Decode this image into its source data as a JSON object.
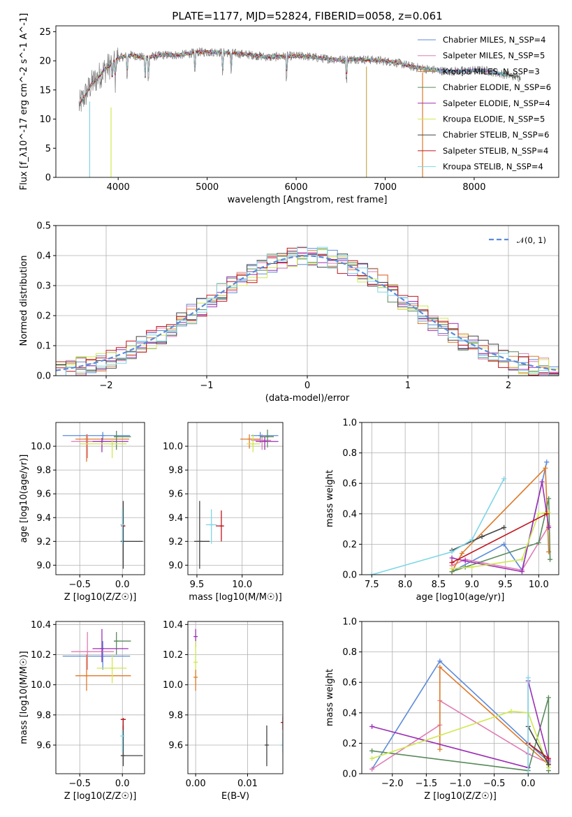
{
  "chart_data": [
    {
      "type": "line",
      "title": "PLATE=1177, MJD=52824, FIBERID=0058, z=0.061",
      "xlabel": "wavelength [Angstrom, rest frame]",
      "ylabel": "Flux [f_λ10^-17 erg cm^-2 s^-1 A^-1]",
      "xlim": [
        3300,
        8950
      ],
      "ylim": [
        0,
        26
      ],
      "xticks": [
        "4000",
        "5000",
        "6000",
        "7000",
        "8000"
      ],
      "yticks": [
        "0",
        "5",
        "10",
        "15",
        "20",
        "25"
      ],
      "legend_position": "upper right",
      "series": [
        {
          "name": "Chabrier MILES, N_SSP=4",
          "color": "#5b8bd9"
        },
        {
          "name": "Salpeter MILES, N_SSP=5",
          "color": "#e07cb4"
        },
        {
          "name": "Kroupa MILES, N_SSP=3",
          "color": "#dd7a2a"
        },
        {
          "name": "Chabrier ELODIE, N_SSP=6",
          "color": "#5a8a5c"
        },
        {
          "name": "Salpeter ELODIE, N_SSP=4",
          "color": "#9b2fb5"
        },
        {
          "name": "Kroupa ELODIE, N_SSP=5",
          "color": "#cfe84e"
        },
        {
          "name": "Chabrier STELIB, N_SSP=6",
          "color": "#444444"
        },
        {
          "name": "Salpeter STELIB, N_SSP=4",
          "color": "#c0141c"
        },
        {
          "name": "Kroupa STELIB, N_SSP=4",
          "color": "#7fd6e6"
        }
      ],
      "continuum": {
        "x": [
          3550,
          3700,
          3850,
          4000,
          4150,
          4300,
          4500,
          4700,
          4900,
          5100,
          5300,
          5500,
          5700,
          5900,
          6100,
          6300,
          6500,
          6700,
          6900,
          7100,
          7300,
          7500,
          7700,
          7900,
          8100,
          8300,
          8500
        ],
        "y": [
          12,
          16,
          18.5,
          20.5,
          21,
          20.5,
          21,
          21,
          21.5,
          21.5,
          21.3,
          21,
          20.6,
          20.8,
          20.8,
          20.4,
          20.2,
          20.3,
          20.1,
          19.8,
          19,
          18.5,
          18.2,
          18.3,
          18.4,
          17.8,
          17.2
        ]
      }
    },
    {
      "type": "bar",
      "subtype": "step-histogram",
      "xlabel": "(data-model)/error",
      "ylabel": "Normed distribution",
      "xlim": [
        -2.5,
        2.5
      ],
      "ylim": [
        0,
        0.5
      ],
      "xticks": [
        "−2",
        "−1",
        "0",
        "1",
        "2"
      ],
      "yticks": [
        "0.0",
        "0.1",
        "0.2",
        "0.3",
        "0.4",
        "0.5"
      ],
      "reference_curve": {
        "name": "𝒩(0, 1)",
        "mean": 0,
        "sigma": 1,
        "color": "#5b8bd9"
      },
      "legend_position": "upper right"
    },
    {
      "type": "scatter",
      "subtype": "errorbars",
      "xlabel": "Z [log10(Z/Z☉)]",
      "ylabel": "age  [log10(age/yr)]",
      "xlim": [
        -0.78,
        0.26
      ],
      "ylim": [
        8.92,
        10.2
      ],
      "xticks": [
        "−0.5",
        "0.0"
      ],
      "yticks": [
        "9.0",
        "9.2",
        "9.4",
        "9.6",
        "9.8",
        "10.0"
      ],
      "points": [
        {
          "color": "#5b8bd9",
          "x": -0.23,
          "xlo": -0.7,
          "xhi": 0.09,
          "y": 10.09,
          "ylo": 10.05,
          "yhi": 10.12
        },
        {
          "color": "#e07cb4",
          "x": -0.41,
          "xlo": -0.6,
          "xhi": -0.1,
          "y": 10.04,
          "ylo": 9.9,
          "yhi": 10.1
        },
        {
          "color": "#dd7a2a",
          "x": -0.42,
          "xlo": -0.55,
          "xhi": 0.08,
          "y": 10.06,
          "ylo": 9.87,
          "yhi": 10.1
        },
        {
          "color": "#5a8a5c",
          "x": -0.07,
          "xlo": -0.1,
          "xhi": 0.1,
          "y": 10.08,
          "ylo": 9.97,
          "yhi": 10.13
        },
        {
          "color": "#9b2fb5",
          "x": -0.24,
          "xlo": -0.35,
          "xhi": 0.07,
          "y": 10.04,
          "ylo": 9.95,
          "yhi": 10.07
        },
        {
          "color": "#cfe84e",
          "x": -0.12,
          "xlo": -0.5,
          "xhi": 0.05,
          "y": 10.02,
          "ylo": 9.9,
          "yhi": 10.06
        },
        {
          "color": "#444444",
          "x": 0.01,
          "xlo": -0.02,
          "xhi": 0.24,
          "y": 9.2,
          "ylo": 8.97,
          "yhi": 9.54
        },
        {
          "color": "#c0141c",
          "x": 0.01,
          "xlo": 0.0,
          "xhi": 0.03,
          "y": 9.33,
          "ylo": 9.32,
          "yhi": 9.34
        },
        {
          "color": "#7fd6e6",
          "x": 0.0,
          "xlo": -0.01,
          "xhi": 0.02,
          "y": 9.34,
          "ylo": 9.18,
          "yhi": 9.47
        }
      ]
    },
    {
      "type": "scatter",
      "subtype": "errorbars",
      "xlabel": "mass [log10(M/M☉)]",
      "xlim": [
        9.4,
        10.45
      ],
      "ylim": [
        8.92,
        10.2
      ],
      "xticks": [
        "9.5",
        "10.0"
      ],
      "yticks": [
        "9.0",
        "9.2",
        "9.4",
        "9.6",
        "9.8",
        "10.0"
      ],
      "points": [
        {
          "color": "#5b8bd9",
          "x": 10.2,
          "xlo": 10.1,
          "xhi": 10.4,
          "y": 10.09,
          "ylo": 10.03,
          "yhi": 10.12
        },
        {
          "color": "#e07cb4",
          "x": 10.22,
          "xlo": 10.1,
          "xhi": 10.32,
          "y": 10.05,
          "ylo": 9.97,
          "yhi": 10.1
        },
        {
          "color": "#dd7a2a",
          "x": 10.08,
          "xlo": 9.98,
          "xhi": 10.2,
          "y": 10.06,
          "ylo": 9.98,
          "yhi": 10.1
        },
        {
          "color": "#5a8a5c",
          "x": 10.28,
          "xlo": 10.2,
          "xhi": 10.35,
          "y": 10.08,
          "ylo": 9.99,
          "yhi": 10.14
        },
        {
          "color": "#9b2fb5",
          "x": 10.25,
          "xlo": 10.15,
          "xhi": 10.4,
          "y": 10.04,
          "ylo": 9.97,
          "yhi": 10.08
        },
        {
          "color": "#cfe84e",
          "x": 10.12,
          "xlo": 10.05,
          "xhi": 10.2,
          "y": 10.02,
          "ylo": 9.95,
          "yhi": 10.1
        },
        {
          "color": "#444444",
          "x": 9.53,
          "xlo": 9.47,
          "xhi": 9.64,
          "y": 9.2,
          "ylo": 8.97,
          "yhi": 9.54
        },
        {
          "color": "#c0141c",
          "x": 9.77,
          "xlo": 9.71,
          "xhi": 9.8,
          "y": 9.33,
          "ylo": 9.2,
          "yhi": 9.46
        },
        {
          "color": "#7fd6e6",
          "x": 9.66,
          "xlo": 9.6,
          "xhi": 9.72,
          "y": 9.34,
          "ylo": 9.18,
          "yhi": 9.47
        }
      ]
    },
    {
      "type": "line",
      "xlabel": "age  [log10(age/yr)]",
      "ylabel": "mass weight",
      "xlim": [
        7.35,
        10.3
      ],
      "ylim": [
        0,
        1.0
      ],
      "xticks": [
        "7.5",
        "8.0",
        "8.5",
        "9.0",
        "9.5",
        "10.0"
      ],
      "yticks": [
        "0.0",
        "0.2",
        "0.4",
        "0.6",
        "0.8",
        "1.0"
      ],
      "series": [
        {
          "color": "#5b8bd9",
          "x": [
            8.7,
            9.48,
            9.75,
            10.12
          ],
          "y": [
            0.02,
            0.2,
            0.03,
            0.74
          ]
        },
        {
          "color": "#e07cb4",
          "x": [
            8.7,
            8.9,
            9.75,
            10.15
          ],
          "y": [
            0.06,
            0.1,
            0.03,
            0.32
          ]
        },
        {
          "color": "#dd7a2a",
          "x": [
            8.7,
            8.85,
            10.1,
            10.15
          ],
          "y": [
            0.02,
            0.14,
            0.7,
            0.15
          ]
        },
        {
          "color": "#5a8a5c",
          "x": [
            8.7,
            8.9,
            10.0,
            10.15,
            10.17
          ],
          "y": [
            0.02,
            0.05,
            0.21,
            0.5,
            0.1
          ]
        },
        {
          "color": "#9b2fb5",
          "x": [
            8.7,
            8.9,
            9.75,
            10.05,
            10.15
          ],
          "y": [
            0.11,
            0.09,
            0.02,
            0.61,
            0.31
          ]
        },
        {
          "color": "#cfe84e",
          "x": [
            8.7,
            9.0,
            9.75,
            10.0,
            10.15
          ],
          "y": [
            0.04,
            0.05,
            0.1,
            0.4,
            0.41
          ]
        },
        {
          "color": "#444444",
          "x": [
            8.7,
            9.15,
            9.48
          ],
          "y": [
            0.16,
            0.25,
            0.31
          ]
        },
        {
          "color": "#c0141c",
          "x": [
            8.7,
            10.12
          ],
          "y": [
            0.08,
            0.4
          ]
        },
        {
          "color": "#7fd6e6",
          "x": [
            7.5,
            8.7,
            9.0,
            9.48
          ],
          "y": [
            0.0,
            0.15,
            0.23,
            0.63
          ]
        }
      ]
    },
    {
      "type": "scatter",
      "subtype": "errorbars",
      "xlabel": "Z [log10(Z/Z☉)]",
      "ylabel": "mass [log10(M/M☉)]",
      "xlim": [
        -0.78,
        0.26
      ],
      "ylim": [
        9.41,
        10.42
      ],
      "xticks": [
        "−0.5",
        "0.0"
      ],
      "yticks": [
        "9.6",
        "9.8",
        "10.0",
        "10.2",
        "10.4"
      ],
      "points": [
        {
          "color": "#5b8bd9",
          "x": -0.23,
          "xlo": -0.7,
          "xhi": 0.09,
          "y": 10.19,
          "ylo": 10.1,
          "yhi": 10.29
        },
        {
          "color": "#e07cb4",
          "x": -0.41,
          "xlo": -0.6,
          "xhi": -0.1,
          "y": 10.22,
          "ylo": 10.1,
          "yhi": 10.35
        },
        {
          "color": "#dd7a2a",
          "x": -0.42,
          "xlo": -0.55,
          "xhi": 0.1,
          "y": 10.06,
          "ylo": 9.96,
          "yhi": 10.2
        },
        {
          "color": "#5a8a5c",
          "x": -0.07,
          "xlo": -0.1,
          "xhi": 0.1,
          "y": 10.29,
          "ylo": 10.2,
          "yhi": 10.35
        },
        {
          "color": "#9b2fb5",
          "x": -0.24,
          "xlo": -0.35,
          "xhi": 0.07,
          "y": 10.24,
          "ylo": 10.15,
          "yhi": 10.37
        },
        {
          "color": "#cfe84e",
          "x": -0.12,
          "xlo": -0.3,
          "xhi": 0.05,
          "y": 10.11,
          "ylo": 10.01,
          "yhi": 10.2
        },
        {
          "color": "#444444",
          "x": 0.01,
          "xlo": -0.02,
          "xhi": 0.24,
          "y": 9.53,
          "ylo": 9.46,
          "yhi": 9.73
        },
        {
          "color": "#c0141c",
          "x": 0.01,
          "xlo": -0.02,
          "xhi": 0.04,
          "y": 9.77,
          "ylo": 9.7,
          "yhi": 9.78
        },
        {
          "color": "#7fd6e6",
          "x": 0.0,
          "xlo": -0.01,
          "xhi": 0.02,
          "y": 9.66,
          "ylo": 9.55,
          "yhi": 9.7
        }
      ]
    },
    {
      "type": "scatter",
      "subtype": "errorbars",
      "xlabel": "E(B-V)",
      "xlim": [
        -0.0015,
        0.0168
      ],
      "ylim": [
        9.41,
        10.42
      ],
      "xticks": [
        "0.00",
        "0.01"
      ],
      "yticks": [
        "9.6",
        "9.8",
        "10.0",
        "10.2",
        "10.4"
      ],
      "points": [
        {
          "color": "#9b2fb5",
          "x": 0.0,
          "y": 10.32,
          "ylo": 10.25,
          "yhi": 10.37
        },
        {
          "color": "#cfe84e",
          "x": 0.0,
          "y": 10.15,
          "ylo": 10.0,
          "yhi": 10.29
        },
        {
          "color": "#dd7a2a",
          "x": 0.0,
          "y": 10.05,
          "ylo": 9.96,
          "yhi": 10.1
        },
        {
          "color": "#444444",
          "x": 0.0137,
          "y": 9.6,
          "ylo": 9.46,
          "yhi": 9.73
        },
        {
          "color": "#c0141c",
          "x": 0.0168,
          "y": 9.75,
          "ylo": 9.7,
          "yhi": 9.79
        },
        {
          "color": "#7fd6e6",
          "x": 0.0168,
          "y": 9.6,
          "ylo": 9.55,
          "yhi": 9.68
        }
      ]
    },
    {
      "type": "line",
      "xlabel": "Z [log10(Z/Z☉)]",
      "ylabel": "mass weight",
      "xlim": [
        -2.45,
        0.45
      ],
      "ylim": [
        0,
        1.0
      ],
      "xticks": [
        "−2.0",
        "−1.5",
        "−1.0",
        "−0.5",
        "0.0"
      ],
      "yticks": [
        "0.0",
        "0.2",
        "0.4",
        "0.6",
        "0.8",
        "1.0"
      ],
      "series": [
        {
          "color": "#5b8bd9",
          "x": [
            -2.3,
            -1.3,
            0.0,
            0.3
          ],
          "y": [
            0.03,
            0.74,
            0.2,
            0.08
          ]
        },
        {
          "color": "#e07cb4",
          "x": [
            -2.3,
            -1.3,
            -1.3,
            0.0,
            0.3
          ],
          "y": [
            0.03,
            0.32,
            0.48,
            0.13,
            0.07
          ]
        },
        {
          "color": "#dd7a2a",
          "x": [
            -1.3,
            -1.3,
            0.3
          ],
          "y": [
            0.16,
            0.7,
            0.06
          ]
        },
        {
          "color": "#5a8a5c",
          "x": [
            -2.3,
            0.0,
            0.3,
            0.3
          ],
          "y": [
            0.15,
            0.02,
            0.5,
            0.02
          ]
        },
        {
          "color": "#9b2fb5",
          "x": [
            -2.3,
            0.0,
            0.0,
            0.3
          ],
          "y": [
            0.31,
            0.04,
            0.61,
            0.09
          ]
        },
        {
          "color": "#cfe84e",
          "x": [
            -2.3,
            -0.25,
            0.0,
            0.3
          ],
          "y": [
            0.1,
            0.41,
            0.4,
            0.04
          ]
        },
        {
          "color": "#444444",
          "x": [
            0.0,
            0.3
          ],
          "y": [
            0.31,
            0.06
          ]
        },
        {
          "color": "#c0141c",
          "x": [
            0.0,
            0.3
          ],
          "y": [
            0.2,
            0.1
          ]
        },
        {
          "color": "#7fd6e6",
          "x": [
            0.0,
            0.0
          ],
          "y": [
            0.0,
            0.63
          ]
        }
      ]
    }
  ]
}
